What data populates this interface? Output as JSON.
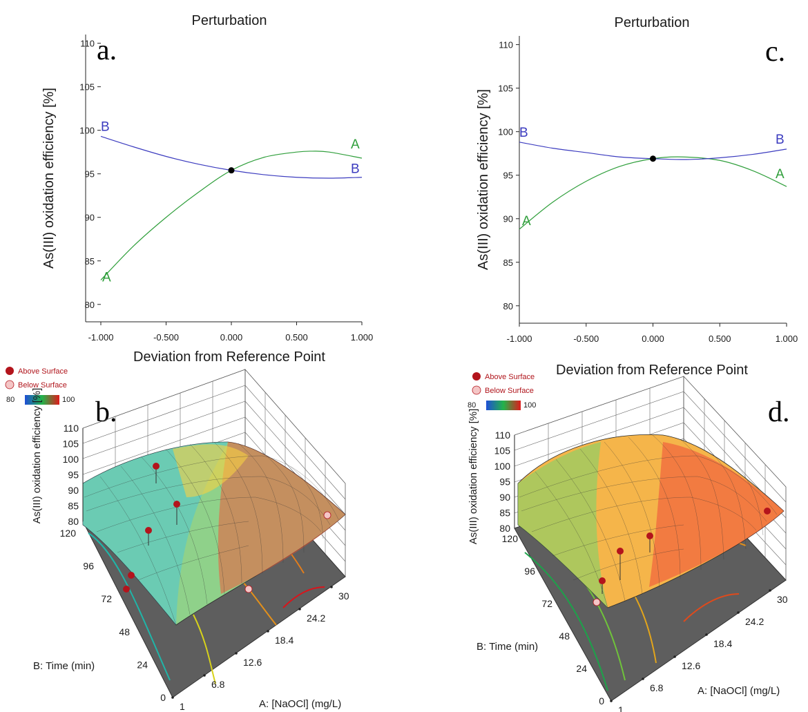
{
  "colors": {
    "factor_A": "#2e9e3a",
    "factor_B": "#3b3bbf",
    "above_surface": "#b3141c",
    "below_surface": "#f4c6c6",
    "floor": "#5e5e5e",
    "colorbar_low": "#1f4fd6",
    "colorbar_mid": "#22b34a",
    "colorbar_high": "#e01b1b"
  },
  "chart_data": [
    {
      "panel": "a.",
      "type": "line",
      "title": "Perturbation",
      "xlabel": "Deviation from Reference Point",
      "ylabel": "As(III) oxidation efficiency [%]",
      "xlim": [
        -1.0,
        1.0
      ],
      "ylim": [
        78,
        111
      ],
      "x_ticks": [
        "-1.000",
        "-0.500",
        "0.000",
        "0.500",
        "1.000"
      ],
      "y_ticks": [
        "80",
        "85",
        "90",
        "95",
        "100",
        "105",
        "110"
      ],
      "reference_point": {
        "x": 0.0,
        "y": 95.4
      },
      "series": [
        {
          "name": "A",
          "x": [
            -1.0,
            -0.75,
            -0.5,
            -0.25,
            0.0,
            0.25,
            0.5,
            0.62,
            0.75,
            1.0
          ],
          "y": [
            82.8,
            86.7,
            90.0,
            92.9,
            95.4,
            96.9,
            97.5,
            97.6,
            97.5,
            96.8
          ]
        },
        {
          "name": "B",
          "x": [
            -1.0,
            -0.75,
            -0.5,
            -0.25,
            0.0,
            0.25,
            0.5,
            0.75,
            1.0
          ],
          "y": [
            99.3,
            98.1,
            97.0,
            96.1,
            95.4,
            94.9,
            94.6,
            94.5,
            94.6
          ]
        }
      ]
    },
    {
      "panel": "c.",
      "type": "line",
      "title": "Perturbation",
      "xlabel": "Deviation from Reference Point",
      "ylabel": "As(III) oxidation efficiency [%]",
      "xlim": [
        -1.0,
        1.0
      ],
      "ylim": [
        78,
        111
      ],
      "x_ticks": [
        "-1.000",
        "-0.500",
        "0.000",
        "0.500",
        "1.000"
      ],
      "y_ticks": [
        "80",
        "85",
        "90",
        "95",
        "100",
        "105",
        "110"
      ],
      "reference_point": {
        "x": 0.0,
        "y": 96.9
      },
      "series": [
        {
          "name": "A",
          "x": [
            -1.0,
            -0.75,
            -0.5,
            -0.25,
            0.0,
            0.22,
            0.5,
            0.75,
            1.0
          ],
          "y": [
            88.8,
            91.9,
            94.3,
            96.0,
            96.9,
            97.1,
            96.7,
            95.5,
            93.7
          ]
        },
        {
          "name": "B",
          "x": [
            -1.0,
            -0.75,
            -0.5,
            -0.25,
            0.0,
            0.25,
            0.5,
            0.75,
            1.0
          ],
          "y": [
            98.8,
            98.1,
            97.6,
            97.1,
            96.9,
            96.8,
            97.0,
            97.4,
            98.0
          ]
        }
      ]
    },
    {
      "panel": "b.",
      "type": "surface3d",
      "zlabel": "As(III) oxidation efficiency [%]",
      "xlabel": "A: [NaOCl] (mg/L)",
      "ylabel": "B: Time (min)",
      "x_ticks": [
        "1",
        "6.8",
        "12.6",
        "18.4",
        "24.2",
        "30"
      ],
      "y_ticks": [
        "0",
        "24",
        "48",
        "72",
        "96",
        "120"
      ],
      "z_ticks": [
        "80",
        "85",
        "90",
        "95",
        "100",
        "105",
        "110"
      ],
      "zlim": [
        80,
        110
      ],
      "legend": {
        "above": "Above Surface",
        "below": "Below Surface",
        "scale_min": "80",
        "scale_max": "100"
      }
    },
    {
      "panel": "d.",
      "type": "surface3d",
      "zlabel": "As(III) oxidation efficiency [%]",
      "xlabel": "A: [NaOCl] (mg/L)",
      "ylabel": "B: Time (min)",
      "x_ticks": [
        "1",
        "6.8",
        "12.6",
        "18.4",
        "24.2",
        "30"
      ],
      "y_ticks": [
        "0",
        "24",
        "48",
        "72",
        "96",
        "120"
      ],
      "z_ticks": [
        "80",
        "85",
        "90",
        "95",
        "100",
        "105",
        "110"
      ],
      "zlim": [
        80,
        110
      ],
      "legend": {
        "above": "Above Surface",
        "below": "Below Surface",
        "scale_min": "80",
        "scale_max": "100"
      }
    }
  ]
}
